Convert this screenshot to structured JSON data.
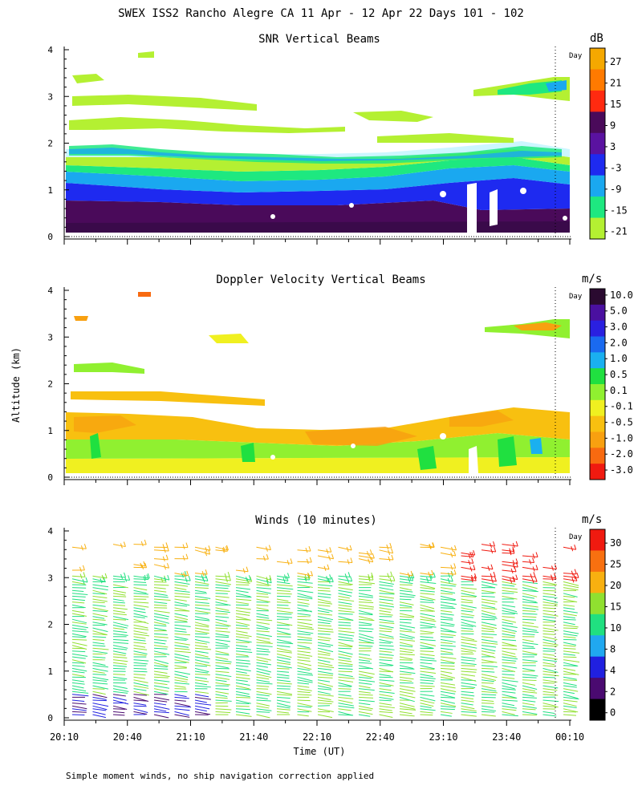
{
  "header": {
    "title": "SWEX ISS2 Rancho Alegre CA  11 Apr - 12 Apr 22 Days 101 - 102"
  },
  "footer": {
    "note": "Simple moment winds, no ship navigation correction applied"
  },
  "chart_data": [
    {
      "type": "heatmap",
      "title": "SNR Vertical Beams",
      "ylabel": "Altitude (km)",
      "xlabel": "Time (UT)",
      "ylim": [
        0,
        4
      ],
      "y_ticks": [
        "0",
        "1",
        "2",
        "3",
        "4"
      ],
      "day_marker": "Day",
      "colorbar": {
        "unit": "dB",
        "labels": [
          "27",
          "21",
          "15",
          "9",
          "3",
          "-3",
          "-9",
          "-15",
          "-21"
        ],
        "colors": [
          "#f5a800",
          "#ff7a00",
          "#ff2a10",
          "#4a0a5a",
          "#5a12a0",
          "#1e2af0",
          "#1aa8f0",
          "#1ee880",
          "#b4f032"
        ]
      }
    },
    {
      "type": "heatmap",
      "title": "Doppler Velocity Vertical Beams",
      "ylabel": "Altitude (km)",
      "ylim": [
        0,
        4
      ],
      "y_ticks": [
        "0",
        "1",
        "2",
        "3",
        "4"
      ],
      "day_marker": "Day",
      "colorbar": {
        "unit": "m/s",
        "labels": [
          "10.0",
          "5.0",
          "3.0",
          "2.0",
          "1.0",
          "0.5",
          "0.1",
          "-0.1",
          "-0.5",
          "-1.0",
          "-2.0",
          "-3.0"
        ],
        "colors": [
          "#2a0a30",
          "#4a10a0",
          "#2a20e0",
          "#1a6af0",
          "#1ab0f0",
          "#20e040",
          "#90f030",
          "#f0f020",
          "#f8c010",
          "#f8a010",
          "#f86a10",
          "#f01a10"
        ]
      }
    },
    {
      "type": "barbs",
      "title": "Winds (10 minutes)",
      "ylim": [
        0,
        4
      ],
      "y_ticks": [
        "0",
        "1",
        "2",
        "3",
        "4"
      ],
      "x_ticks": [
        "20:10",
        "20:40",
        "21:10",
        "21:40",
        "22:10",
        "22:40",
        "23:10",
        "23:40",
        "00:10"
      ],
      "xlabel": "Time (UT)",
      "day_marker": "Day",
      "colorbar": {
        "unit": "m/s",
        "labels": [
          "30",
          "25",
          "20",
          "15",
          "10",
          "8",
          "4",
          "2",
          "0"
        ],
        "colors": [
          "#f01a10",
          "#f87010",
          "#f8b010",
          "#90e030",
          "#20e080",
          "#20a8f0",
          "#2020e0",
          "#4a0a70",
          "#000000"
        ]
      }
    }
  ]
}
